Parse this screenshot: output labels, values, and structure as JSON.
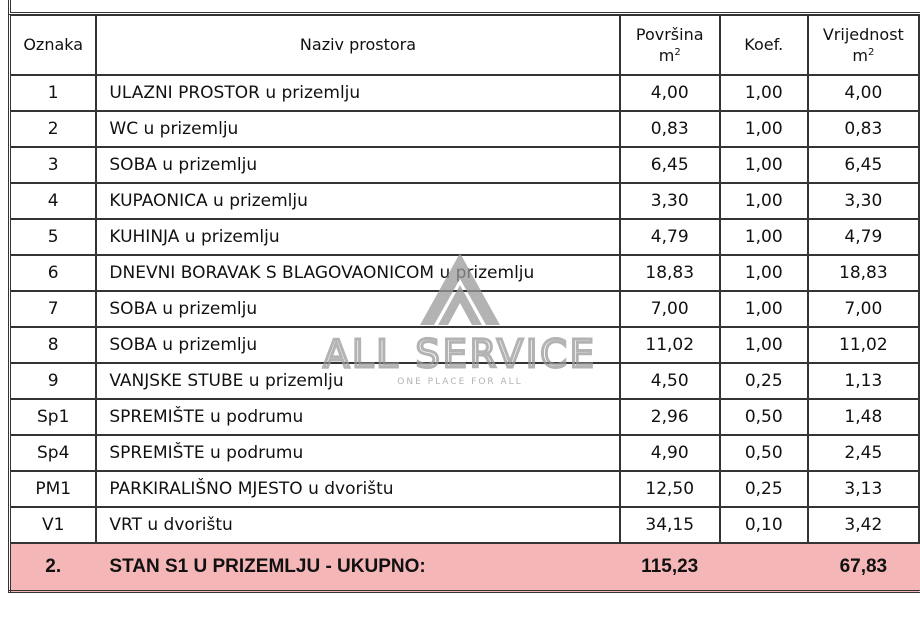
{
  "header": {
    "oznaka": "Oznaka",
    "naziv": "Naziv prostora",
    "povrsina": "Površina",
    "povrsina_unit": "m",
    "koef": "Koef.",
    "vrijednost": "Vrijednost",
    "vrijednost_unit": "m"
  },
  "rows": [
    {
      "oznaka": "1",
      "naziv": "ULAZNI PROSTOR u prizemlju",
      "povrsina": "4,00",
      "koef": "1,00",
      "vrijednost": "4,00"
    },
    {
      "oznaka": "2",
      "naziv": "WC u prizemlju",
      "povrsina": "0,83",
      "koef": "1,00",
      "vrijednost": "0,83"
    },
    {
      "oznaka": "3",
      "naziv": "SOBA u prizemlju",
      "povrsina": "6,45",
      "koef": "1,00",
      "vrijednost": "6,45"
    },
    {
      "oznaka": "4",
      "naziv": "KUPAONICA u prizemlju",
      "povrsina": "3,30",
      "koef": "1,00",
      "vrijednost": "3,30"
    },
    {
      "oznaka": "5",
      "naziv": "KUHINJA u prizemlju",
      "povrsina": "4,79",
      "koef": "1,00",
      "vrijednost": "4,79"
    },
    {
      "oznaka": "6",
      "naziv": "DNEVNI BORAVAK S BLAGOVAONICOM u prizemlju",
      "povrsina": "18,83",
      "koef": "1,00",
      "vrijednost": "18,83"
    },
    {
      "oznaka": "7",
      "naziv": "SOBA u prizemlju",
      "povrsina": "7,00",
      "koef": "1,00",
      "vrijednost": "7,00"
    },
    {
      "oznaka": "8",
      "naziv": "SOBA u prizemlju",
      "povrsina": "11,02",
      "koef": "1,00",
      "vrijednost": "11,02"
    },
    {
      "oznaka": "9",
      "naziv": "VANJSKE STUBE u prizemlju",
      "povrsina": "4,50",
      "koef": "0,25",
      "vrijednost": "1,13"
    },
    {
      "oznaka": "Sp1",
      "naziv": "SPREMIŠTE u podrumu",
      "povrsina": "2,96",
      "koef": "0,50",
      "vrijednost": "1,48"
    },
    {
      "oznaka": "Sp4",
      "naziv": "SPREMIŠTE u podrumu",
      "povrsina": "4,90",
      "koef": "0,50",
      "vrijednost": "2,45"
    },
    {
      "oznaka": "PM1",
      "naziv": "PARKIRALIŠNO MJESTO u dvorištu",
      "povrsina": "12,50",
      "koef": "0,25",
      "vrijednost": "3,13"
    },
    {
      "oznaka": "V1",
      "naziv": "VRT u dvorištu",
      "povrsina": "34,15",
      "koef": "0,10",
      "vrijednost": "3,42"
    }
  ],
  "total": {
    "oznaka": "2.",
    "naziv": "STAN S1 U PRIZEMLJU - UKUPNO:",
    "povrsina": "115,23",
    "koef": "",
    "vrijednost": "67,83"
  },
  "watermark": {
    "brand": "ALL SERVICE",
    "tagline": "ONE PLACE FOR ALL"
  },
  "colors": {
    "total_bg": "#f4b6b6",
    "border": "#333333",
    "watermark": "#9a9a9a"
  }
}
